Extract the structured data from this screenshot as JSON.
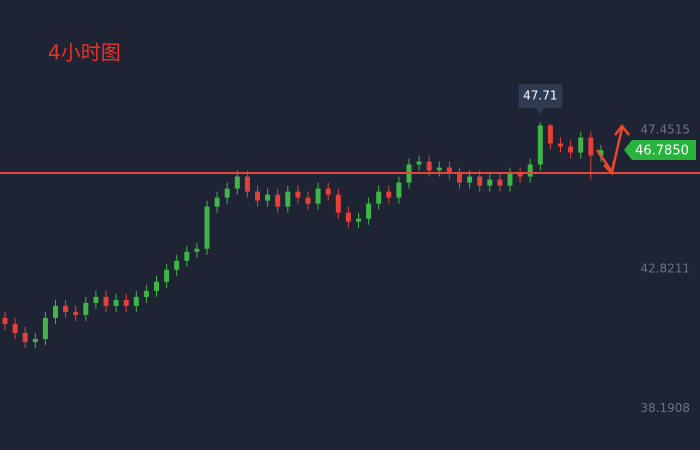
{
  "chart_data": {
    "type": "candlestick",
    "title": "4小时图",
    "ylim": [
      36.81,
      51.77
    ],
    "yticks": [
      47.4515,
      42.8211,
      38.1908
    ],
    "up_color": "#3fb54a",
    "down_color": "#e5413a",
    "open": [
      41.2,
      41.0,
      40.7,
      40.4,
      40.5,
      41.2,
      41.6,
      41.4,
      41.3,
      41.7,
      41.9,
      41.6,
      41.8,
      41.6,
      41.9,
      42.1,
      42.4,
      42.8,
      43.1,
      43.4,
      43.5,
      44.9,
      45.2,
      45.5,
      45.9,
      45.4,
      45.1,
      45.3,
      44.9,
      45.4,
      45.2,
      45.0,
      45.5,
      45.3,
      44.7,
      44.4,
      44.5,
      45.0,
      45.4,
      45.2,
      45.7,
      46.3,
      46.4,
      46.1,
      46.2,
      46.0,
      45.7,
      45.9,
      45.6,
      45.8,
      45.6,
      46.0,
      45.9,
      46.3,
      47.6,
      47.0,
      46.9,
      46.7,
      47.2,
      46.6
    ],
    "high": [
      41.4,
      41.2,
      40.9,
      40.7,
      41.4,
      41.8,
      41.8,
      41.6,
      41.9,
      42.1,
      42.1,
      42.0,
      42.0,
      42.1,
      42.3,
      42.6,
      43.0,
      43.3,
      43.6,
      43.7,
      45.1,
      45.4,
      45.7,
      46.1,
      46.1,
      45.6,
      45.5,
      45.5,
      45.6,
      45.6,
      45.4,
      45.7,
      45.7,
      45.5,
      44.9,
      44.7,
      45.2,
      45.6,
      45.6,
      45.9,
      46.5,
      46.6,
      46.6,
      46.4,
      46.4,
      46.2,
      46.1,
      46.1,
      46.0,
      46.0,
      46.2,
      46.2,
      46.5,
      47.71,
      47.65,
      47.2,
      47.1,
      47.4,
      47.4,
      46.95
    ],
    "low": [
      40.8,
      40.5,
      40.2,
      40.2,
      40.3,
      41.0,
      41.2,
      41.1,
      41.1,
      41.5,
      41.4,
      41.4,
      41.4,
      41.4,
      41.7,
      41.9,
      42.2,
      42.6,
      42.9,
      43.2,
      43.3,
      44.7,
      45.0,
      45.3,
      45.2,
      44.9,
      44.9,
      44.7,
      44.7,
      45.0,
      44.8,
      44.8,
      45.1,
      44.5,
      44.2,
      44.2,
      44.3,
      44.8,
      45.0,
      45.0,
      45.5,
      46.1,
      45.9,
      45.9,
      45.8,
      45.5,
      45.5,
      45.4,
      45.4,
      45.4,
      45.4,
      45.7,
      45.7,
      46.1,
      46.8,
      46.7,
      46.5,
      46.5,
      45.8,
      46.4
    ],
    "close": [
      41.0,
      40.7,
      40.4,
      40.5,
      41.2,
      41.6,
      41.4,
      41.3,
      41.7,
      41.9,
      41.6,
      41.8,
      41.6,
      41.9,
      42.1,
      42.4,
      42.8,
      43.1,
      43.4,
      43.5,
      44.9,
      45.2,
      45.5,
      45.9,
      45.4,
      45.1,
      45.3,
      44.9,
      45.4,
      45.2,
      45.0,
      45.5,
      45.3,
      44.7,
      44.4,
      44.5,
      45.0,
      45.4,
      45.2,
      45.7,
      46.3,
      46.4,
      46.1,
      46.2,
      46.0,
      45.7,
      45.9,
      45.6,
      45.8,
      45.6,
      46.0,
      45.9,
      46.3,
      47.6,
      47.0,
      46.9,
      46.7,
      47.2,
      46.6,
      46.785
    ],
    "level": 46.02,
    "level_color": "#e2493b",
    "high_annotation": 47.71,
    "last_price": {
      "value": 46.785,
      "label": "46.7850"
    }
  }
}
